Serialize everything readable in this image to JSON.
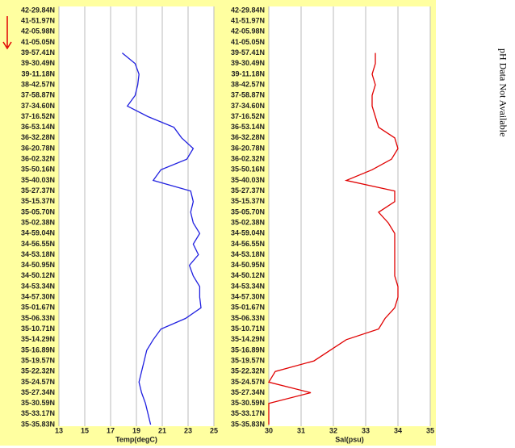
{
  "chart_data": [
    {
      "type": "line",
      "x_label": "Temp(degC)",
      "categories": [
        "42-29.84N",
        "41-51.97N",
        "42-05.98N",
        "41-05.05N",
        "39-57.41N",
        "39-30.49N",
        "39-11.18N",
        "38-42.57N",
        "37-58.87N",
        "37-34.60N",
        "37-16.52N",
        "36-53.14N",
        "36-32.28N",
        "36-20.78N",
        "36-02.32N",
        "35-50.16N",
        "35-40.03N",
        "35-27.37N",
        "35-15.37N",
        "35-05.70N",
        "35-02.38N",
        "34-59.04N",
        "34-56.55N",
        "34-53.18N",
        "34-50.95N",
        "34-50.12N",
        "34-53.34N",
        "34-57.30N",
        "35-01.67N",
        "35-06.33N",
        "35-10.71N",
        "35-14.29N",
        "35-16.89N",
        "35-19.57N",
        "35-22.32N",
        "35-24.57N",
        "35-27.34N",
        "35-30.59N",
        "35-33.17N",
        "35-35.83N"
      ],
      "values": [
        null,
        null,
        null,
        null,
        17.9,
        18.9,
        19.2,
        19.1,
        18.9,
        18.3,
        19.9,
        21.9,
        22.5,
        23.4,
        22.9,
        20.9,
        20.3,
        23.2,
        23.4,
        23.2,
        23.4,
        23.9,
        23.4,
        23.8,
        23.1,
        23.4,
        23.9,
        23.9,
        24.0,
        22.8,
        20.9,
        20.3,
        19.8,
        19.6,
        19.4,
        19.2,
        19.4,
        19.7,
        19.9,
        20.1
      ],
      "color": "#2020e0",
      "xlim": [
        13,
        25
      ],
      "xticks": [
        13,
        15,
        17,
        19,
        21,
        23,
        25
      ],
      "grid": true
    },
    {
      "type": "line",
      "x_label": "Sal(psu)",
      "categories": [
        "42-29.84N",
        "41-51.97N",
        "42-05.98N",
        "41-05.05N",
        "39-57.41N",
        "39-30.49N",
        "39-11.18N",
        "38-42.57N",
        "37-58.87N",
        "37-34.60N",
        "37-16.52N",
        "36-53.14N",
        "36-32.28N",
        "36-20.78N",
        "36-02.32N",
        "35-50.16N",
        "35-40.03N",
        "35-27.37N",
        "35-15.37N",
        "35-05.70N",
        "35-02.38N",
        "34-59.04N",
        "34-56.55N",
        "34-53.18N",
        "34-50.95N",
        "34-50.12N",
        "34-53.34N",
        "34-57.30N",
        "35-01.67N",
        "35-06.33N",
        "35-10.71N",
        "35-14.29N",
        "35-16.89N",
        "35-19.57N",
        "35-22.32N",
        "35-24.57N",
        "35-27.34N",
        "35-30.59N",
        "35-33.17N",
        "35-35.83N"
      ],
      "values": [
        null,
        null,
        null,
        null,
        33.3,
        33.3,
        33.2,
        33.3,
        33.2,
        33.2,
        33.3,
        33.4,
        33.9,
        34.0,
        33.8,
        33.2,
        32.4,
        33.9,
        33.9,
        33.4,
        33.7,
        33.9,
        33.9,
        33.9,
        33.9,
        33.9,
        34.0,
        34.0,
        33.9,
        33.6,
        33.4,
        32.4,
        31.9,
        31.4,
        30.2,
        30.0,
        31.3,
        30.0,
        30.0,
        30.0
      ],
      "color": "#e00000",
      "xlim": [
        30,
        35
      ],
      "xticks": [
        30,
        31,
        32,
        33,
        34,
        35
      ],
      "grid": true
    }
  ],
  "side_note": "pH Data Not Available"
}
